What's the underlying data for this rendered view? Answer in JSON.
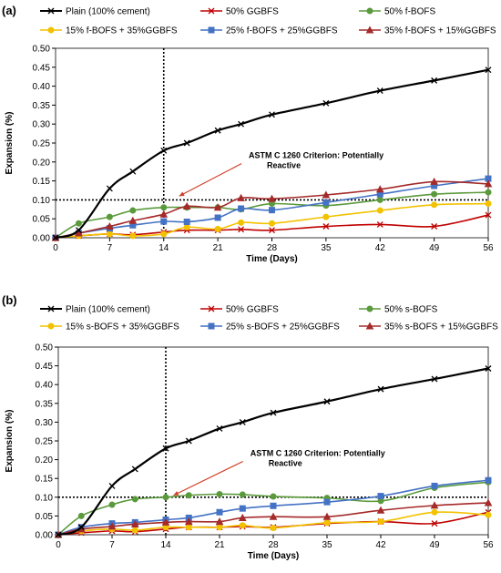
{
  "chart_data": [
    {
      "type": "line",
      "panel_label": "(a)",
      "xlabel": "Time (Days)",
      "ylabel": "Expansion (%)",
      "xlim": [
        0,
        56
      ],
      "ylim": [
        0,
        0.5
      ],
      "xticks": [
        0,
        7,
        14,
        21,
        28,
        35,
        42,
        49,
        56
      ],
      "yticks": [
        "0.00",
        "0.05",
        "0.10",
        "0.15",
        "0.20",
        "0.25",
        "0.30",
        "0.35",
        "0.40",
        "0.45",
        "0.50"
      ],
      "legend": "top",
      "grid": false,
      "reference_lines": [
        {
          "orientation": "horizontal",
          "value": 0.1,
          "style": "dotted"
        },
        {
          "orientation": "vertical",
          "value": 14,
          "style": "dotted"
        }
      ],
      "annotation": {
        "line1": "ASTM C 1260 Criterion: Potentially",
        "line2": "Reactive",
        "x": 25,
        "y": 0.21,
        "arrow_to": [
          16,
          0.11
        ]
      },
      "series": [
        {
          "name": "Plain (100% cement)",
          "color": "#000000",
          "marker": "x",
          "x": [
            0,
            3,
            7,
            10,
            14,
            17,
            21,
            24,
            28,
            35,
            42,
            49,
            56
          ],
          "y": [
            0,
            0.02,
            0.13,
            0.175,
            0.23,
            0.25,
            0.283,
            0.3,
            0.325,
            0.355,
            0.388,
            0.415,
            0.443
          ]
        },
        {
          "name": "50% GGBFS",
          "color": "#c00000",
          "marker": "x",
          "x": [
            0,
            3,
            7,
            10,
            14,
            17,
            21,
            24,
            28,
            35,
            42,
            49,
            56
          ],
          "y": [
            0,
            0.005,
            0.01,
            0.008,
            0.015,
            0.02,
            0.02,
            0.022,
            0.02,
            0.03,
            0.035,
            0.03,
            0.06
          ]
        },
        {
          "name": "50% f-BOFS",
          "color": "#5b9a3c",
          "marker": "circle",
          "x": [
            0,
            3,
            7,
            10,
            14,
            17,
            21,
            24,
            28,
            35,
            42,
            49,
            56
          ],
          "y": [
            0,
            0.038,
            0.055,
            0.072,
            0.08,
            0.08,
            0.08,
            0.075,
            0.09,
            0.085,
            0.1,
            0.115,
            0.12
          ]
        },
        {
          "name": "15% f-BOFS + 35%GGBFS",
          "color": "#f2c200",
          "marker": "circle",
          "x": [
            0,
            3,
            7,
            10,
            14,
            17,
            21,
            24,
            28,
            35,
            42,
            49,
            56
          ],
          "y": [
            0,
            0.005,
            0.01,
            0.005,
            0.01,
            0.028,
            0.023,
            0.04,
            0.038,
            0.055,
            0.072,
            0.087,
            0.09
          ]
        },
        {
          "name": "25% f-BOFS + 25%GGBFS",
          "color": "#4472c4",
          "marker": "square",
          "x": [
            0,
            3,
            7,
            10,
            14,
            17,
            21,
            24,
            28,
            35,
            42,
            49,
            56
          ],
          "y": [
            0,
            0.012,
            0.025,
            0.033,
            0.043,
            0.042,
            0.053,
            0.077,
            0.073,
            0.093,
            0.115,
            0.137,
            0.156
          ]
        },
        {
          "name": "35% f-BOFS + 15%GGBFS",
          "color": "#a52a2a",
          "marker": "triangle",
          "x": [
            0,
            3,
            7,
            10,
            14,
            17,
            21,
            24,
            28,
            35,
            42,
            49,
            56
          ],
          "y": [
            0,
            0.012,
            0.03,
            0.045,
            0.062,
            0.083,
            0.08,
            0.105,
            0.103,
            0.113,
            0.128,
            0.148,
            0.142
          ]
        }
      ]
    },
    {
      "type": "line",
      "panel_label": "(b)",
      "xlabel": "Time (Days)",
      "ylabel": "Expansion (%)",
      "xlim": [
        0,
        56
      ],
      "ylim": [
        0,
        0.5
      ],
      "xticks": [
        0,
        7,
        14,
        21,
        28,
        35,
        42,
        49,
        56
      ],
      "yticks": [
        "0.00",
        "0.05",
        "0.10",
        "0.15",
        "0.20",
        "0.25",
        "0.30",
        "0.35",
        "0.40",
        "0.45",
        "0.50"
      ],
      "legend": "top",
      "grid": false,
      "reference_lines": [
        {
          "orientation": "horizontal",
          "value": 0.1,
          "style": "dotted"
        },
        {
          "orientation": "vertical",
          "value": 14,
          "style": "dotted"
        }
      ],
      "annotation": {
        "line1": "ASTM C 1260 Criterion: Potentially",
        "line2": "Reactive",
        "x": 25,
        "y": 0.21,
        "arrow_to": [
          15,
          0.105
        ]
      },
      "series": [
        {
          "name": "Plain (100% cement)",
          "color": "#000000",
          "marker": "x",
          "x": [
            0,
            3,
            7,
            10,
            14,
            17,
            21,
            24,
            28,
            35,
            42,
            49,
            56
          ],
          "y": [
            0,
            0.02,
            0.13,
            0.175,
            0.23,
            0.25,
            0.283,
            0.3,
            0.325,
            0.355,
            0.388,
            0.415,
            0.443
          ]
        },
        {
          "name": "50% GGBFS",
          "color": "#c00000",
          "marker": "x",
          "x": [
            0,
            3,
            7,
            10,
            14,
            17,
            21,
            24,
            28,
            35,
            42,
            49,
            56
          ],
          "y": [
            0,
            0.005,
            0.01,
            0.008,
            0.015,
            0.02,
            0.02,
            0.022,
            0.02,
            0.03,
            0.035,
            0.03,
            0.06
          ]
        },
        {
          "name": "50% s-BOFS",
          "color": "#5b9a3c",
          "marker": "circle",
          "x": [
            0,
            3,
            7,
            10,
            14,
            17,
            21,
            24,
            28,
            35,
            42,
            49,
            56
          ],
          "y": [
            0,
            0.05,
            0.08,
            0.095,
            0.1,
            0.105,
            0.108,
            0.107,
            0.102,
            0.098,
            0.09,
            0.125,
            0.14
          ]
        },
        {
          "name": "15% s-BOFS + 35%GGBFS",
          "color": "#f2c200",
          "marker": "circle",
          "x": [
            0,
            3,
            7,
            10,
            14,
            17,
            21,
            24,
            28,
            35,
            42,
            49,
            56
          ],
          "y": [
            0,
            0.01,
            0.015,
            0.012,
            0.02,
            0.02,
            0.02,
            0.025,
            0.018,
            0.032,
            0.035,
            0.06,
            0.053
          ]
        },
        {
          "name": "25% s-BOFS + 25%GGBFS",
          "color": "#4472c4",
          "marker": "square",
          "x": [
            0,
            3,
            7,
            10,
            14,
            17,
            21,
            24,
            28,
            35,
            42,
            49,
            56
          ],
          "y": [
            0,
            0.02,
            0.03,
            0.033,
            0.04,
            0.045,
            0.06,
            0.07,
            0.077,
            0.087,
            0.103,
            0.13,
            0.145
          ]
        },
        {
          "name": "35% s-BOFS + 15%GGBFS",
          "color": "#a52a2a",
          "marker": "triangle",
          "x": [
            0,
            3,
            7,
            10,
            14,
            17,
            21,
            24,
            28,
            35,
            42,
            49,
            56
          ],
          "y": [
            0,
            0.015,
            0.022,
            0.028,
            0.033,
            0.035,
            0.035,
            0.045,
            0.048,
            0.048,
            0.065,
            0.078,
            0.085
          ]
        }
      ]
    }
  ]
}
